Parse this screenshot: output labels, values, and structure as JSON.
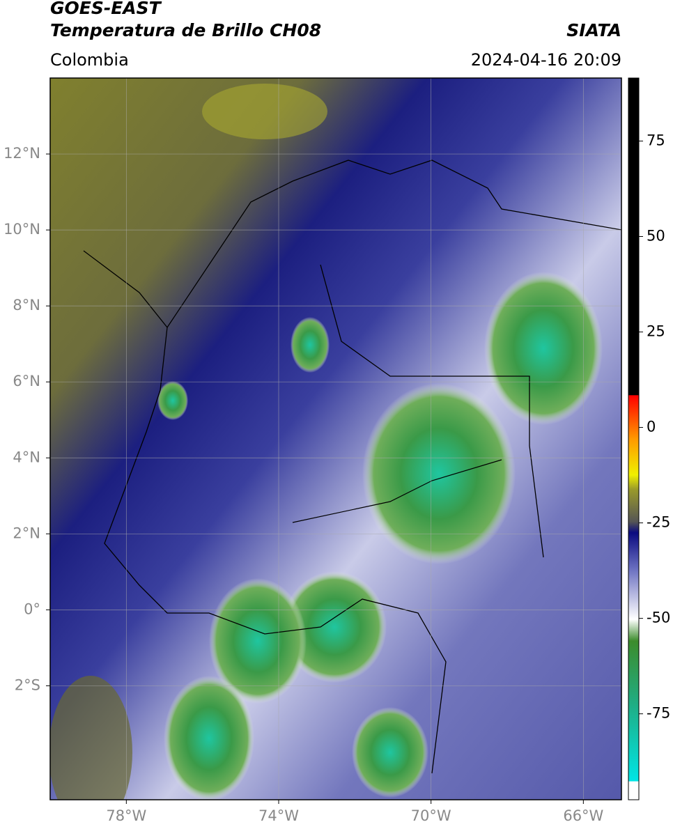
{
  "header": {
    "title_line1": "GOES-EAST",
    "title_line2": "Temperatura de Brillo CH08",
    "org": "SIATA",
    "region": "Colombia",
    "timestamp": "2024-04-16 20:09"
  },
  "map": {
    "xlim": [
      -80,
      -65
    ],
    "ylim": [
      -5,
      14
    ],
    "xticks": [
      {
        "value": -78,
        "label": "78°W"
      },
      {
        "value": -74,
        "label": "74°W"
      },
      {
        "value": -70,
        "label": "70°W"
      },
      {
        "value": -66,
        "label": "66°W"
      }
    ],
    "yticks": [
      {
        "value": 12,
        "label": "12°N"
      },
      {
        "value": 10,
        "label": "10°N"
      },
      {
        "value": 8,
        "label": "8°N"
      },
      {
        "value": 6,
        "label": "6°N"
      },
      {
        "value": 4,
        "label": "4°N"
      },
      {
        "value": 2,
        "label": "2°N"
      },
      {
        "value": 0,
        "label": "0°"
      },
      {
        "value": -2,
        "label": "2°S"
      }
    ],
    "grid": true
  },
  "colorbar": {
    "lim": [
      -97.5,
      91.5
    ],
    "ticks": [
      75,
      50,
      25,
      0,
      -25,
      -50,
      -75
    ]
  }
}
